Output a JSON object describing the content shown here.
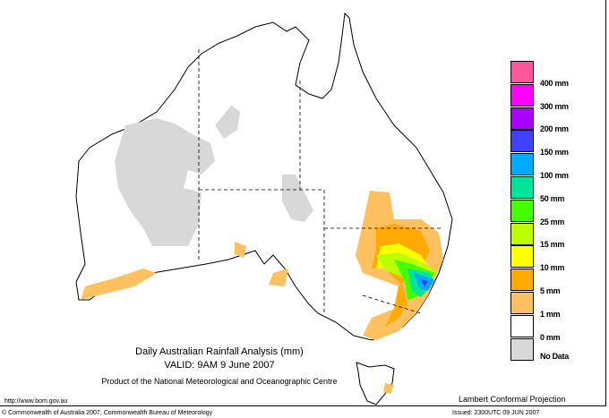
{
  "title": "Daily Australian Rainfall Analysis (mm)",
  "valid": "VALID: 9AM  9 June 2007",
  "product": "Product of the National Meteorological and Oceanographic Centre",
  "url": "http://www.bom.gov.au",
  "projection": "Lambert Conformal Projection",
  "copyright": "© Commonwealth of Australia 2007, Commonwealth Bureau of Meteorology",
  "issued": "Issued: 2300UTC 09 JUN 2007",
  "legend": [
    {
      "color": "#ff5599",
      "label": "400 mm"
    },
    {
      "color": "#ff00ff",
      "label": "300 mm"
    },
    {
      "color": "#aa00ff",
      "label": "200 mm"
    },
    {
      "color": "#4040ff",
      "label": "150 mm"
    },
    {
      "color": "#00aaff",
      "label": "100 mm"
    },
    {
      "color": "#00e599",
      "label": "50 mm"
    },
    {
      "color": "#44ff00",
      "label": "25 mm"
    },
    {
      "color": "#bbff00",
      "label": "15 mm"
    },
    {
      "color": "#ffff00",
      "label": "10 mm"
    },
    {
      "color": "#ffaa00",
      "label": "5 mm"
    },
    {
      "color": "#ffc060",
      "label": "1 mm"
    },
    {
      "color": "#ffffff",
      "label": "0 mm"
    },
    {
      "color": "#d8d8d8",
      "label": "No Data"
    }
  ]
}
